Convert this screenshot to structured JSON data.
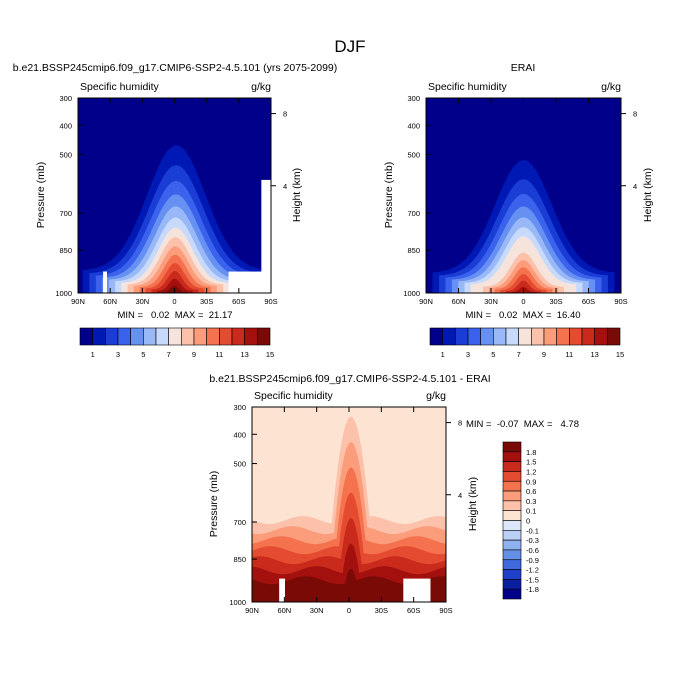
{
  "figure": {
    "title": "DJF"
  },
  "chart_data": [
    {
      "type": "heatmap",
      "title": "b.e21.BSSP245cmip6.f09_g17.CMIP6-SSP2-4.5.101 (yrs 2075-2099)",
      "left_label": "Specific humidity",
      "right_label": "g/kg",
      "xlabel": "",
      "ylabel": "Pressure (mb)",
      "y2label": "Height (km)",
      "x_ticks": [
        "90N",
        "60N",
        "30N",
        "0",
        "30S",
        "60S",
        "90S"
      ],
      "y_ticks": [
        1000,
        850,
        700,
        500,
        400,
        300
      ],
      "y2_ticks": [
        4,
        8
      ],
      "stats": "MIN =   0.02  MAX =  21.17",
      "min": 0.02,
      "max": 21.17,
      "palette": "humidity"
    },
    {
      "type": "heatmap",
      "title": "ERAI",
      "left_label": "Specific humidity",
      "right_label": "g/kg",
      "xlabel": "",
      "ylabel": "Pressure (mb)",
      "y2label": "Height (km)",
      "x_ticks": [
        "90N",
        "60N",
        "30N",
        "0",
        "30S",
        "60S",
        "90S"
      ],
      "y_ticks": [
        1000,
        850,
        700,
        500,
        400,
        300
      ],
      "y2_ticks": [
        4,
        8
      ],
      "stats": "MIN =   0.02  MAX =  16.40",
      "min": 0.02,
      "max": 16.4,
      "palette": "humidity"
    },
    {
      "type": "heatmap",
      "title": "b.e21.BSSP245cmip6.f09_g17.CMIP6-SSP2-4.5.101 - ERAI",
      "left_label": "Specific humidity",
      "right_label": "g/kg",
      "xlabel": "",
      "ylabel": "Pressure (mb)",
      "y2label": "Height (km)",
      "x_ticks": [
        "90N",
        "60N",
        "30N",
        "0",
        "30S",
        "60S",
        "90S"
      ],
      "y_ticks": [
        1000,
        850,
        700,
        500,
        400,
        300
      ],
      "y2_ticks": [
        4,
        8
      ],
      "stats": "MIN =  -0.07  MAX =   4.78",
      "min": -0.07,
      "max": 4.78,
      "palette": "difference"
    }
  ],
  "colorbar_horizontal": {
    "labels": [
      "1",
      "3",
      "5",
      "7",
      "9",
      "11",
      "13",
      "15"
    ],
    "colors": [
      "#00008a",
      "#0018b4",
      "#1a3dd6",
      "#3a62ec",
      "#6690f2",
      "#98b8f8",
      "#c8dafb",
      "#f6e4dc",
      "#fcc1aa",
      "#fb9c7a",
      "#f4724e",
      "#e54b31",
      "#c92a1c",
      "#a3100e",
      "#7a0a06"
    ]
  },
  "colorbar_vertical": {
    "labels": [
      "1.8",
      "1.5",
      "1.2",
      "0.9",
      "0.6",
      "0.3",
      "0.1",
      "0",
      "-0.1",
      "-0.3",
      "-0.6",
      "-0.9",
      "-1.2",
      "-1.5",
      "-1.8"
    ],
    "colors": [
      "#7a0a06",
      "#a3100e",
      "#c92a1c",
      "#e54b31",
      "#f4724e",
      "#fb9c7a",
      "#fcc1aa",
      "#fde3d2",
      "#dbe7f8",
      "#b9cff5",
      "#8fb1ef",
      "#6590e8",
      "#3f6ae0",
      "#1f40c8",
      "#0a1f9e",
      "#00008a"
    ]
  }
}
